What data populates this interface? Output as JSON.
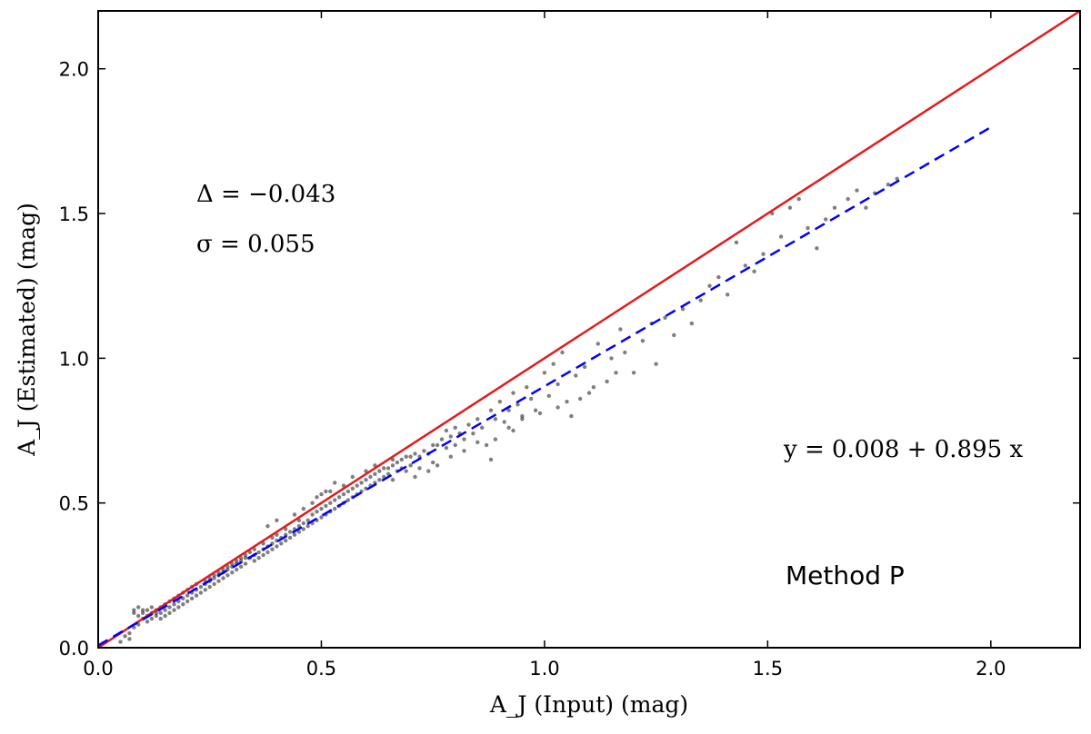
{
  "chart_data": {
    "type": "scatter",
    "xlabel": "A_J (Input) (mag)",
    "ylabel": "A_J (Estimated) (mag)",
    "xlim": [
      0.0,
      2.2
    ],
    "ylim": [
      0.0,
      2.2
    ],
    "xticks": [
      0.0,
      0.5,
      1.0,
      1.5,
      2.0
    ],
    "yticks": [
      0.0,
      0.5,
      1.0,
      1.5,
      2.0
    ],
    "xtick_labels": [
      "0.0",
      "0.5",
      "1.0",
      "1.5",
      "2.0"
    ],
    "ytick_labels": [
      "0.0",
      "0.5",
      "1.0",
      "1.5",
      "2.0"
    ],
    "grid": false,
    "annotations": {
      "delta": "Δ = −0.043",
      "sigma": "σ = 0.055",
      "fit_equation": "y = 0.008 + 0.895 x",
      "method": "Method P"
    },
    "one_to_one_line": {
      "x": [
        0.0,
        2.2
      ],
      "y": [
        0.0,
        2.2
      ],
      "color": "#e41a1c"
    },
    "fit_line": {
      "intercept": 0.008,
      "slope": 0.895,
      "x_range": [
        0.0,
        2.0
      ],
      "color": "#0000ff"
    },
    "points_color": "#000000",
    "points": [
      [
        0.05,
        0.02
      ],
      [
        0.06,
        0.04
      ],
      [
        0.07,
        0.05
      ],
      [
        0.07,
        0.03
      ],
      [
        0.08,
        0.07
      ],
      [
        0.08,
        0.12
      ],
      [
        0.08,
        0.13
      ],
      [
        0.09,
        0.11
      ],
      [
        0.09,
        0.14
      ],
      [
        0.09,
        0.08
      ],
      [
        0.1,
        0.12
      ],
      [
        0.1,
        0.13
      ],
      [
        0.1,
        0.1
      ],
      [
        0.11,
        0.11
      ],
      [
        0.11,
        0.13
      ],
      [
        0.11,
        0.09
      ],
      [
        0.12,
        0.12
      ],
      [
        0.12,
        0.1
      ],
      [
        0.12,
        0.14
      ],
      [
        0.13,
        0.11
      ],
      [
        0.13,
        0.13
      ],
      [
        0.13,
        0.12
      ],
      [
        0.14,
        0.12
      ],
      [
        0.14,
        0.14
      ],
      [
        0.14,
        0.1
      ],
      [
        0.15,
        0.13
      ],
      [
        0.15,
        0.15
      ],
      [
        0.15,
        0.11
      ],
      [
        0.16,
        0.14
      ],
      [
        0.16,
        0.16
      ],
      [
        0.16,
        0.12
      ],
      [
        0.17,
        0.15
      ],
      [
        0.17,
        0.17
      ],
      [
        0.17,
        0.13
      ],
      [
        0.18,
        0.16
      ],
      [
        0.18,
        0.18
      ],
      [
        0.18,
        0.14
      ],
      [
        0.19,
        0.17
      ],
      [
        0.19,
        0.19
      ],
      [
        0.19,
        0.15
      ],
      [
        0.2,
        0.18
      ],
      [
        0.2,
        0.2
      ],
      [
        0.2,
        0.16
      ],
      [
        0.21,
        0.19
      ],
      [
        0.21,
        0.21
      ],
      [
        0.21,
        0.17
      ],
      [
        0.22,
        0.2
      ],
      [
        0.22,
        0.22
      ],
      [
        0.22,
        0.18
      ],
      [
        0.23,
        0.21
      ],
      [
        0.23,
        0.19
      ],
      [
        0.24,
        0.22
      ],
      [
        0.24,
        0.2
      ],
      [
        0.24,
        0.23
      ],
      [
        0.25,
        0.23
      ],
      [
        0.25,
        0.21
      ],
      [
        0.25,
        0.24
      ],
      [
        0.26,
        0.24
      ],
      [
        0.26,
        0.22
      ],
      [
        0.26,
        0.25
      ],
      [
        0.27,
        0.25
      ],
      [
        0.27,
        0.23
      ],
      [
        0.27,
        0.26
      ],
      [
        0.28,
        0.26
      ],
      [
        0.28,
        0.24
      ],
      [
        0.28,
        0.27
      ],
      [
        0.29,
        0.27
      ],
      [
        0.29,
        0.25
      ],
      [
        0.29,
        0.28
      ],
      [
        0.3,
        0.28
      ],
      [
        0.3,
        0.26
      ],
      [
        0.3,
        0.29
      ],
      [
        0.31,
        0.29
      ],
      [
        0.31,
        0.27
      ],
      [
        0.31,
        0.3
      ],
      [
        0.32,
        0.3
      ],
      [
        0.32,
        0.28
      ],
      [
        0.32,
        0.31
      ],
      [
        0.33,
        0.31
      ],
      [
        0.33,
        0.29
      ],
      [
        0.33,
        0.32
      ],
      [
        0.34,
        0.31
      ],
      [
        0.34,
        0.33
      ],
      [
        0.35,
        0.32
      ],
      [
        0.35,
        0.3
      ],
      [
        0.35,
        0.34
      ],
      [
        0.36,
        0.33
      ],
      [
        0.36,
        0.31
      ],
      [
        0.37,
        0.34
      ],
      [
        0.37,
        0.32
      ],
      [
        0.37,
        0.36
      ],
      [
        0.38,
        0.35
      ],
      [
        0.38,
        0.33
      ],
      [
        0.39,
        0.36
      ],
      [
        0.39,
        0.34
      ],
      [
        0.39,
        0.38
      ],
      [
        0.4,
        0.37
      ],
      [
        0.4,
        0.35
      ],
      [
        0.4,
        0.39
      ],
      [
        0.41,
        0.38
      ],
      [
        0.41,
        0.36
      ],
      [
        0.42,
        0.39
      ],
      [
        0.42,
        0.37
      ],
      [
        0.42,
        0.41
      ],
      [
        0.43,
        0.4
      ],
      [
        0.43,
        0.38
      ],
      [
        0.44,
        0.41
      ],
      [
        0.44,
        0.39
      ],
      [
        0.45,
        0.42
      ],
      [
        0.45,
        0.4
      ],
      [
        0.45,
        0.44
      ],
      [
        0.46,
        0.43
      ],
      [
        0.46,
        0.41
      ],
      [
        0.47,
        0.44
      ],
      [
        0.47,
        0.42
      ],
      [
        0.48,
        0.46
      ],
      [
        0.48,
        0.43
      ],
      [
        0.48,
        0.5
      ],
      [
        0.49,
        0.47
      ],
      [
        0.49,
        0.44
      ],
      [
        0.49,
        0.52
      ],
      [
        0.5,
        0.48
      ],
      [
        0.5,
        0.45
      ],
      [
        0.5,
        0.53
      ],
      [
        0.51,
        0.49
      ],
      [
        0.51,
        0.46
      ],
      [
        0.52,
        0.5
      ],
      [
        0.52,
        0.47
      ],
      [
        0.52,
        0.54
      ],
      [
        0.53,
        0.51
      ],
      [
        0.53,
        0.48
      ],
      [
        0.54,
        0.52
      ],
      [
        0.54,
        0.49
      ],
      [
        0.55,
        0.53
      ],
      [
        0.55,
        0.5
      ],
      [
        0.55,
        0.56
      ],
      [
        0.56,
        0.54
      ],
      [
        0.56,
        0.51
      ],
      [
        0.57,
        0.55
      ],
      [
        0.57,
        0.52
      ],
      [
        0.58,
        0.56
      ],
      [
        0.58,
        0.53
      ],
      [
        0.59,
        0.57
      ],
      [
        0.59,
        0.54
      ],
      [
        0.6,
        0.58
      ],
      [
        0.6,
        0.55
      ],
      [
        0.61,
        0.59
      ],
      [
        0.61,
        0.56
      ],
      [
        0.62,
        0.6
      ],
      [
        0.62,
        0.57
      ],
      [
        0.63,
        0.61
      ],
      [
        0.63,
        0.58
      ],
      [
        0.64,
        0.62
      ],
      [
        0.64,
        0.59
      ],
      [
        0.65,
        0.62
      ],
      [
        0.65,
        0.6
      ],
      [
        0.66,
        0.63
      ],
      [
        0.66,
        0.58
      ],
      [
        0.67,
        0.64
      ],
      [
        0.67,
        0.61
      ],
      [
        0.68,
        0.65
      ],
      [
        0.68,
        0.62
      ],
      [
        0.69,
        0.66
      ],
      [
        0.7,
        0.66
      ],
      [
        0.7,
        0.63
      ],
      [
        0.71,
        0.67
      ],
      [
        0.72,
        0.66
      ],
      [
        0.72,
        0.62
      ],
      [
        0.73,
        0.68
      ],
      [
        0.74,
        0.67
      ],
      [
        0.75,
        0.7
      ],
      [
        0.75,
        0.64
      ],
      [
        0.76,
        0.7
      ],
      [
        0.77,
        0.72
      ],
      [
        0.78,
        0.75
      ],
      [
        0.78,
        0.69
      ],
      [
        0.79,
        0.73
      ],
      [
        0.8,
        0.7
      ],
      [
        0.8,
        0.76
      ],
      [
        0.81,
        0.74
      ],
      [
        0.82,
        0.72
      ],
      [
        0.83,
        0.77
      ],
      [
        0.84,
        0.74
      ],
      [
        0.85,
        0.79
      ],
      [
        0.86,
        0.76
      ],
      [
        0.87,
        0.7
      ],
      [
        0.88,
        0.82
      ],
      [
        0.88,
        0.65
      ],
      [
        0.89,
        0.79
      ],
      [
        0.9,
        0.85
      ],
      [
        0.91,
        0.78
      ],
      [
        0.92,
        0.82
      ],
      [
        0.93,
        0.88
      ],
      [
        0.93,
        0.75
      ],
      [
        0.94,
        0.84
      ],
      [
        0.95,
        0.8
      ],
      [
        0.96,
        0.9
      ],
      [
        0.97,
        0.86
      ],
      [
        0.98,
        0.82
      ],
      [
        1.0,
        0.95
      ],
      [
        1.01,
        0.87
      ],
      [
        1.02,
        0.98
      ],
      [
        1.03,
        0.91
      ],
      [
        1.04,
        1.02
      ],
      [
        1.05,
        0.85
      ],
      [
        1.06,
        0.8
      ],
      [
        1.07,
        0.94
      ],
      [
        1.09,
        0.97
      ],
      [
        1.1,
        0.88
      ],
      [
        1.12,
        1.05
      ],
      [
        1.14,
        0.92
      ],
      [
        1.15,
        1.0
      ],
      [
        1.17,
        1.1
      ],
      [
        1.18,
        1.02
      ],
      [
        1.2,
        0.95
      ],
      [
        1.22,
        1.06
      ],
      [
        1.24,
        1.12
      ],
      [
        1.25,
        0.98
      ],
      [
        1.27,
        1.14
      ],
      [
        1.29,
        1.08
      ],
      [
        1.31,
        1.17
      ],
      [
        1.33,
        1.12
      ],
      [
        1.35,
        1.2
      ],
      [
        1.37,
        1.25
      ],
      [
        1.39,
        1.28
      ],
      [
        1.41,
        1.22
      ],
      [
        1.43,
        1.4
      ],
      [
        1.45,
        1.32
      ],
      [
        1.47,
        1.3
      ],
      [
        1.49,
        1.36
      ],
      [
        1.51,
        1.5
      ],
      [
        1.53,
        1.42
      ],
      [
        1.55,
        1.52
      ],
      [
        1.57,
        1.55
      ],
      [
        1.59,
        1.45
      ],
      [
        1.61,
        1.38
      ],
      [
        1.63,
        1.48
      ],
      [
        1.65,
        1.52
      ],
      [
        1.68,
        1.55
      ],
      [
        1.7,
        1.58
      ],
      [
        1.72,
        1.52
      ],
      [
        1.74,
        1.57
      ],
      [
        1.77,
        1.6
      ],
      [
        1.79,
        1.62
      ],
      [
        0.38,
        0.42
      ],
      [
        0.4,
        0.44
      ],
      [
        0.44,
        0.46
      ],
      [
        0.46,
        0.48
      ],
      [
        0.51,
        0.54
      ],
      [
        0.53,
        0.57
      ],
      [
        0.57,
        0.59
      ],
      [
        0.6,
        0.61
      ],
      [
        0.62,
        0.63
      ],
      [
        0.66,
        0.65
      ],
      [
        0.69,
        0.61
      ],
      [
        0.71,
        0.59
      ],
      [
        0.74,
        0.61
      ],
      [
        0.76,
        0.63
      ],
      [
        0.79,
        0.66
      ],
      [
        0.82,
        0.68
      ],
      [
        0.85,
        0.71
      ],
      [
        0.89,
        0.72
      ],
      [
        0.92,
        0.76
      ],
      [
        0.95,
        0.79
      ],
      [
        0.99,
        0.81
      ],
      [
        1.03,
        0.83
      ],
      [
        1.08,
        0.86
      ],
      [
        1.11,
        0.9
      ],
      [
        1.16,
        0.95
      ]
    ]
  }
}
